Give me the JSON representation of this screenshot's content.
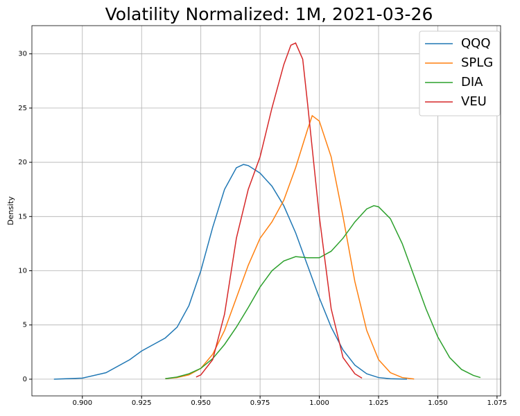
{
  "chart_data": {
    "type": "line",
    "title": "Volatility Normalized: 1M, 2021-03-26",
    "y_label": "Density",
    "grid": true,
    "legend": "upper right",
    "xlim": [
      0.8787,
      1.0765
    ],
    "ylim": [
      -1.54,
      32.6
    ],
    "xticks": [
      {
        "value": 0.9,
        "label": "0.900"
      },
      {
        "value": 0.925,
        "label": "0.925"
      },
      {
        "value": 0.95,
        "label": "0.950"
      },
      {
        "value": 0.975,
        "label": "0.975"
      },
      {
        "value": 1.0,
        "label": "1.000"
      },
      {
        "value": 1.025,
        "label": "1.025"
      },
      {
        "value": 1.05,
        "label": "1.050"
      },
      {
        "value": 1.075,
        "label": "1.075"
      }
    ],
    "yticks": [
      0,
      5,
      10,
      15,
      20,
      25,
      30
    ],
    "series": [
      {
        "name": "QQQ",
        "color": "#1f77b4",
        "x": [
          0.888,
          0.9,
          0.91,
          0.92,
          0.925,
          0.93,
          0.935,
          0.94,
          0.945,
          0.95,
          0.955,
          0.96,
          0.965,
          0.968,
          0.97,
          0.975,
          0.98,
          0.985,
          0.99,
          0.995,
          1.0,
          1.005,
          1.01,
          1.015,
          1.02,
          1.025,
          1.03,
          1.037
        ],
        "values": [
          0,
          0.1,
          0.6,
          1.8,
          2.6,
          3.2,
          3.8,
          4.8,
          6.8,
          10,
          14,
          17.5,
          19.5,
          19.8,
          19.7,
          19,
          17.8,
          16,
          13.5,
          10.5,
          7.5,
          4.8,
          2.7,
          1.3,
          0.5,
          0.15,
          0.04,
          0
        ]
      },
      {
        "name": "SPLG",
        "color": "#ff7f0e",
        "x": [
          0.935,
          0.94,
          0.945,
          0.95,
          0.955,
          0.96,
          0.965,
          0.97,
          0.975,
          0.98,
          0.985,
          0.99,
          0.995,
          0.997,
          1.0,
          1.005,
          1.01,
          1.015,
          1.02,
          1.025,
          1.03,
          1.035,
          1.04
        ],
        "values": [
          0.05,
          0.15,
          0.4,
          1,
          2.3,
          4.5,
          7.5,
          10.5,
          13,
          14.5,
          16.5,
          19.5,
          23,
          24.3,
          23.8,
          20.5,
          15,
          9,
          4.5,
          1.8,
          0.6,
          0.15,
          0.02
        ]
      },
      {
        "name": "DIA",
        "color": "#2ca02c",
        "x": [
          0.935,
          0.94,
          0.945,
          0.95,
          0.955,
          0.96,
          0.965,
          0.97,
          0.975,
          0.98,
          0.985,
          0.99,
          0.995,
          1.0,
          1.005,
          1.01,
          1.015,
          1.02,
          1.023,
          1.025,
          1.03,
          1.035,
          1.04,
          1.045,
          1.05,
          1.055,
          1.06,
          1.065,
          1.068
        ],
        "values": [
          0.05,
          0.2,
          0.5,
          1,
          1.9,
          3.2,
          4.8,
          6.6,
          8.5,
          10,
          10.9,
          11.3,
          11.2,
          11.2,
          11.8,
          13,
          14.5,
          15.7,
          16,
          15.9,
          14.8,
          12.5,
          9.5,
          6.5,
          3.9,
          2,
          0.9,
          0.35,
          0.15
        ]
      },
      {
        "name": "VEU",
        "color": "#d62728",
        "x": [
          0.948,
          0.95,
          0.955,
          0.96,
          0.965,
          0.97,
          0.975,
          0.98,
          0.985,
          0.988,
          0.99,
          0.993,
          0.995,
          1.0,
          1.005,
          1.01,
          1.015,
          1.018
        ],
        "values": [
          0.2,
          0.4,
          1.8,
          6,
          13,
          17.5,
          20.5,
          25,
          29,
          30.8,
          31,
          29.5,
          25.5,
          15,
          6.5,
          2,
          0.5,
          0.1
        ]
      }
    ]
  }
}
